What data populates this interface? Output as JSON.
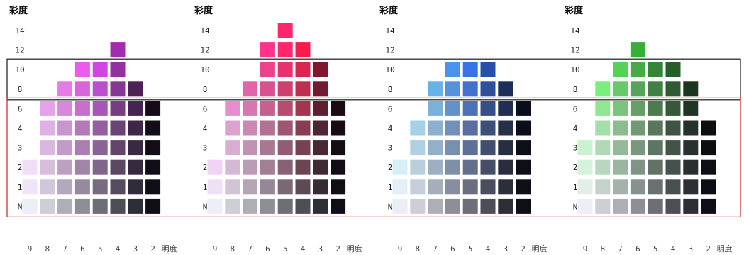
{
  "chart_data": {
    "type": "heatmap",
    "ylabel": "彩度",
    "xlabel": "明度",
    "y_ticks": [
      "14",
      "12",
      "10",
      "8",
      "6",
      "4",
      "3",
      "2",
      "1",
      "N"
    ],
    "x_ticks": [
      9,
      8,
      7,
      6,
      5,
      4,
      3,
      2
    ],
    "bands": [
      {
        "color": "#1a1a1a",
        "chroma_range": [
          "10",
          "8"
        ]
      },
      {
        "color": "#cc2222",
        "chroma_range": [
          "6",
          "N"
        ]
      }
    ],
    "panels": [
      {
        "hue_color": "#6e1e78",
        "chips": {
          "14": [],
          "12": [
            4
          ],
          "10": [
            6,
            5,
            4
          ],
          "8": [
            7,
            6,
            5,
            4,
            3
          ],
          "6": [
            8,
            7,
            6,
            5,
            4,
            3,
            2
          ],
          "4": [
            8,
            7,
            6,
            5,
            4,
            3,
            2
          ],
          "3": [
            8,
            7,
            6,
            5,
            4,
            3,
            2
          ],
          "2": [
            9,
            8,
            7,
            6,
            5,
            4,
            3,
            2
          ],
          "1": [
            9,
            8,
            7,
            6,
            5,
            4,
            3,
            2
          ],
          "N": [
            9,
            8,
            7,
            6,
            5,
            4,
            3,
            2
          ]
        }
      },
      {
        "hue_color": "#c4163c",
        "chips": {
          "14": [
            5
          ],
          "12": [
            6,
            5,
            4
          ],
          "10": [
            6,
            5,
            4,
            3
          ],
          "8": [
            7,
            6,
            5,
            4,
            3
          ],
          "6": [
            8,
            7,
            6,
            5,
            4,
            3,
            2
          ],
          "4": [
            8,
            7,
            6,
            5,
            4,
            3,
            2
          ],
          "3": [
            8,
            7,
            6,
            5,
            4,
            3,
            2
          ],
          "2": [
            9,
            8,
            7,
            6,
            5,
            4,
            3,
            2
          ],
          "1": [
            9,
            8,
            7,
            6,
            5,
            4,
            3,
            2
          ],
          "N": [
            9,
            8,
            7,
            6,
            5,
            4,
            3,
            2
          ]
        }
      },
      {
        "hue_color": "#1f4fb4",
        "chips": {
          "14": [],
          "12": [],
          "10": [
            6,
            5,
            4
          ],
          "8": [
            7,
            6,
            5,
            4,
            3
          ],
          "6": [
            7,
            6,
            5,
            4,
            3,
            2
          ],
          "4": [
            8,
            7,
            6,
            5,
            4,
            3,
            2
          ],
          "3": [
            8,
            7,
            6,
            5,
            4,
            3,
            2
          ],
          "2": [
            9,
            8,
            7,
            6,
            5,
            4,
            3,
            2
          ],
          "1": [
            9,
            8,
            7,
            6,
            5,
            4,
            3,
            2
          ],
          "N": [
            9,
            8,
            7,
            6,
            5,
            4,
            3,
            2
          ]
        }
      },
      {
        "hue_color": "#2c8c2c",
        "chips": {
          "14": [],
          "12": [
            6
          ],
          "10": [
            7,
            6,
            5,
            4
          ],
          "8": [
            8,
            7,
            6,
            5,
            4,
            3
          ],
          "6": [
            8,
            7,
            6,
            5,
            4,
            3
          ],
          "4": [
            8,
            7,
            6,
            5,
            4,
            3,
            2
          ],
          "3": [
            9,
            8,
            7,
            6,
            5,
            4,
            3,
            2
          ],
          "2": [
            9,
            8,
            7,
            6,
            5,
            4,
            3,
            2
          ],
          "1": [
            9,
            8,
            7,
            6,
            5,
            4,
            3,
            2
          ],
          "N": [
            9,
            8,
            7,
            6,
            5,
            4,
            3,
            2
          ]
        }
      }
    ]
  }
}
